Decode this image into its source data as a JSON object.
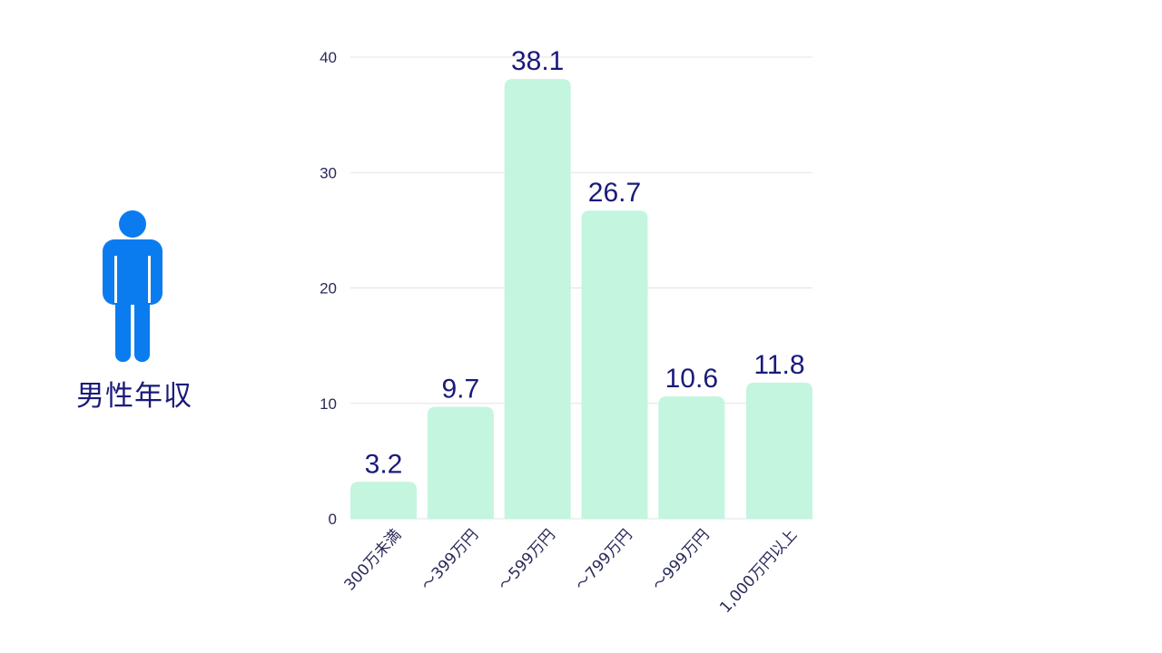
{
  "figure": {
    "label": "男性年収"
  },
  "colors": {
    "bar": "#c3f5df",
    "value_text": "#1a1a7a",
    "axis_text": "#2a2a5a",
    "grid": "#e3e3e3",
    "icon": "#0a7cf0"
  },
  "chart_data": {
    "type": "bar",
    "categories": [
      "300万未満",
      "～399万円",
      "～599万円",
      "～799万円",
      "～999万円",
      "1,000万円以上"
    ],
    "values": [
      3.2,
      9.7,
      38.1,
      26.7,
      10.6,
      11.8
    ],
    "value_labels": [
      "3.2",
      "9.7",
      "38.1",
      "26.7",
      "10.6",
      "11.8"
    ],
    "yticks": [
      0,
      10,
      20,
      30,
      40
    ],
    "ylim": [
      0,
      40
    ],
    "grid": true,
    "legend": "none",
    "title": "",
    "xlabel": "",
    "ylabel": ""
  }
}
